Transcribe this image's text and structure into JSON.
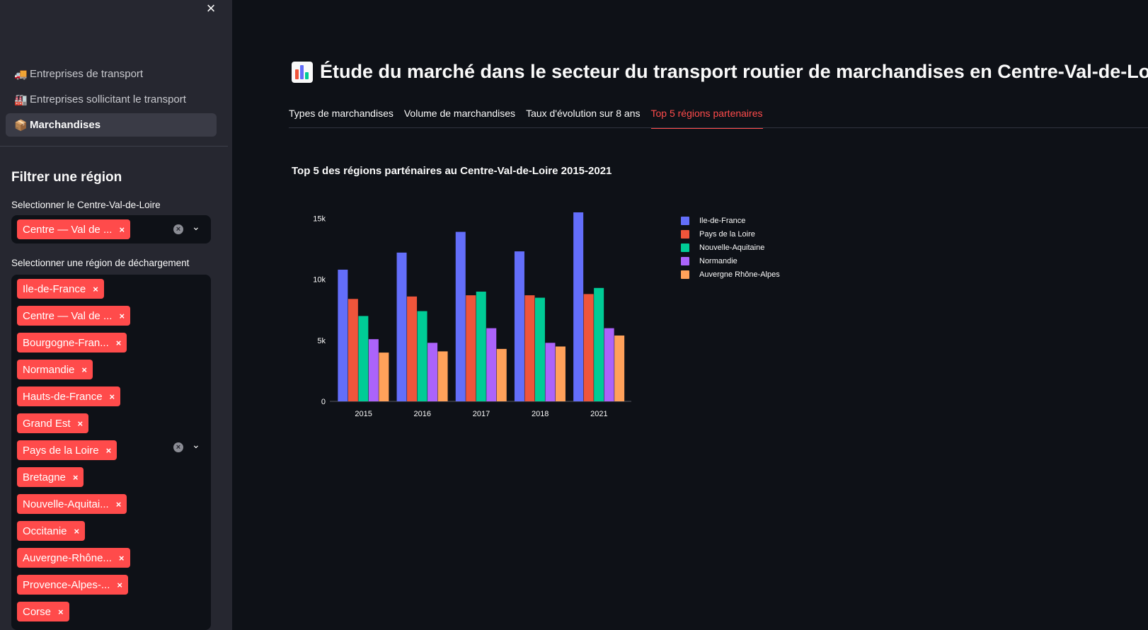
{
  "sidebar": {
    "close_icon": "×",
    "nav": [
      {
        "emoji": "🚚",
        "label": "Entreprises de transport"
      },
      {
        "emoji": "🏭",
        "label": "Entreprises sollicitant le transport"
      },
      {
        "emoji": "📦",
        "label": "Marchandises"
      }
    ],
    "filter_title": "Filtrer une région",
    "select1": {
      "label": "Selectionner le Centre-Val-de-Loire",
      "tags": [
        "Centre — Val de ..."
      ]
    },
    "select2": {
      "label": "Selectionner une région de déchargement",
      "tags": [
        "Ile-de-France",
        "Centre — Val de ...",
        "Bourgogne-Fran...",
        "Normandie",
        "Hauts-de-France",
        "Grand Est",
        "Pays de la Loire",
        "Bretagne",
        "Nouvelle-Aquitai...",
        "Occitanie",
        "Auvergne-Rhône...",
        "Provence-Alpes-...",
        "Corse"
      ]
    },
    "tag_close": "×",
    "clear_icon": "×",
    "chevron_icon": "⌄"
  },
  "main": {
    "title": "Étude du marché dans le secteur du transport routier de marchandises en Centre-Val-de-Loire",
    "tabs": [
      "Types de marchandises",
      "Volume de marchandises",
      "Taux d'évolution sur 8 ans",
      "Top 5 régions partenaires"
    ],
    "active_tab": 3
  },
  "colors": {
    "accent": "#ff4b4b",
    "sidebar_bg": "#262730",
    "main_bg": "#0e1117"
  },
  "chart_data": {
    "type": "bar",
    "title": "Top 5 des régions parténaires au Centre-Val-de-Loire 2015-2021",
    "categories": [
      "2015",
      "2016",
      "2017",
      "2018",
      "2021"
    ],
    "ylim": [
      0,
      15500
    ],
    "yticks": [
      0,
      5000,
      10000,
      15000
    ],
    "ytick_labels": [
      "0",
      "5k",
      "10k",
      "15k"
    ],
    "legend_position": "right",
    "series": [
      {
        "name": "Ile-de-France",
        "color": "#636efa",
        "values": [
          10800,
          12200,
          13900,
          12300,
          15500
        ]
      },
      {
        "name": "Pays de la Loire",
        "color": "#ef553b",
        "values": [
          8400,
          8600,
          8700,
          8700,
          8800
        ]
      },
      {
        "name": "Nouvelle-Aquitaine",
        "color": "#00cc96",
        "values": [
          7000,
          7400,
          9000,
          8500,
          9300
        ]
      },
      {
        "name": "Normandie",
        "color": "#ab63fa",
        "values": [
          5100,
          4800,
          6000,
          4800,
          6000
        ]
      },
      {
        "name": "Auvergne Rhône-Alpes",
        "color": "#ffa15a",
        "values": [
          4000,
          4100,
          4300,
          4500,
          5400
        ]
      }
    ]
  }
}
